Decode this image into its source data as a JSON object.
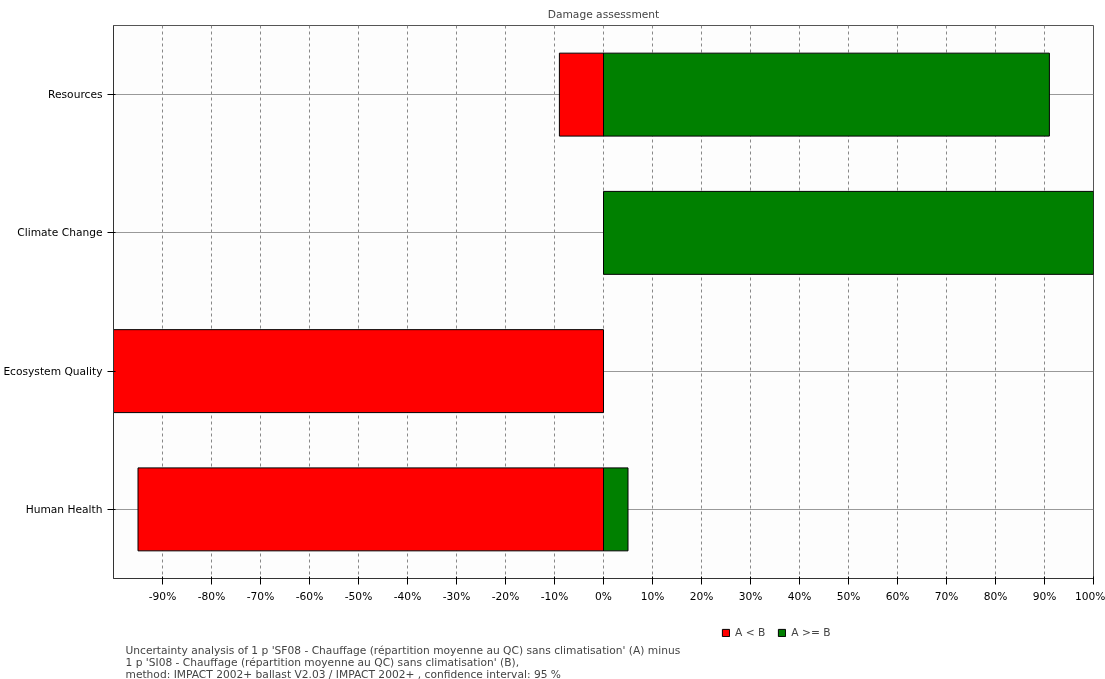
{
  "chart_data": {
    "type": "bar",
    "orientation": "horizontal",
    "stacked": true,
    "title": "Damage assessment",
    "categories": [
      "Resources",
      "Climate Change",
      "Ecosystem Quality",
      "Human Health"
    ],
    "series": [
      {
        "name": "A < B",
        "color": "#ff0000",
        "values": [
          -9,
          0,
          -100,
          -95
        ]
      },
      {
        "name": "A >= B",
        "color": "#008000",
        "values": [
          91,
          100,
          0,
          5
        ]
      }
    ],
    "xlim": [
      -100,
      100
    ],
    "xticks": [
      {
        "value": -90,
        "label": "-90%"
      },
      {
        "value": -80,
        "label": "-80%"
      },
      {
        "value": -70,
        "label": "-70%"
      },
      {
        "value": -60,
        "label": "-60%"
      },
      {
        "value": -50,
        "label": "-50%"
      },
      {
        "value": -40,
        "label": "-40%"
      },
      {
        "value": -30,
        "label": "-30%"
      },
      {
        "value": -20,
        "label": "-20%"
      },
      {
        "value": -10,
        "label": "-10%"
      },
      {
        "value": 0,
        "label": "0%"
      },
      {
        "value": 10,
        "label": "10%"
      },
      {
        "value": 20,
        "label": "20%"
      },
      {
        "value": 30,
        "label": "30%"
      },
      {
        "value": 40,
        "label": "40%"
      },
      {
        "value": 50,
        "label": "50%"
      },
      {
        "value": 60,
        "label": "60%"
      },
      {
        "value": 70,
        "label": "70%"
      },
      {
        "value": 80,
        "label": "80%"
      },
      {
        "value": 90,
        "label": "90%"
      },
      {
        "value": 100,
        "label": "100%"
      }
    ],
    "grid": true,
    "legend": "bottom",
    "annotations": [
      "Uncertainty analysis of 1 p 'SF08 - Chauffage (répartition moyenne au QC) sans climatisation' (A) minus",
      "1 p 'SI08 - Chauffage (répartition moyenne au QC) sans climatisation' (B),",
      "method: IMPACT 2002+ ballast V2.03 /  IMPACT 2002+ , confidence interval: 95 %"
    ]
  }
}
